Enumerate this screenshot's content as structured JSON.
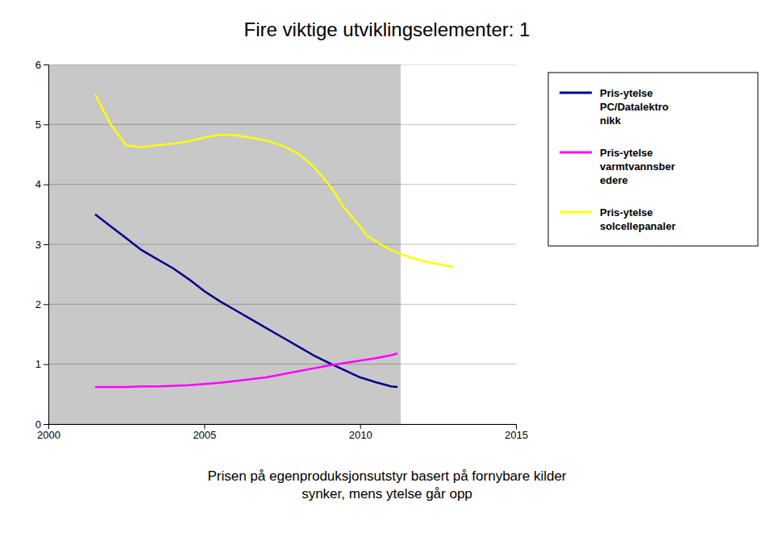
{
  "chart_data": {
    "type": "line",
    "title": "Fire viktige utviklingselementer: 1",
    "subtitle": "Prisen på egenproduksjonsutstyr basert på fornybare kilder\nsynker, mens ytelse går opp",
    "xlim": [
      2000,
      2015
    ],
    "xticks": [
      2000,
      2005,
      2010,
      2015
    ],
    "ylim": [
      0,
      6
    ],
    "yticks": [
      0,
      1,
      2,
      3,
      4,
      5,
      6
    ],
    "grid": true,
    "shaded_region": {
      "x": [
        2000,
        2011.3
      ],
      "color": "#C8C8C8"
    },
    "series": [
      {
        "name": "Pris-ytelse\nPC/Datalektro\nnikk",
        "color": "#00008B",
        "x": [
          2001.5,
          2002,
          2002.5,
          2003,
          2003.5,
          2004,
          2004.5,
          2005,
          2005.5,
          2006,
          2006.5,
          2007,
          2007.5,
          2008,
          2008.5,
          2009,
          2009.5,
          2010,
          2010.5,
          2011,
          2011.2
        ],
        "values": [
          3.5,
          3.3,
          3.1,
          2.9,
          2.75,
          2.6,
          2.42,
          2.22,
          2.05,
          1.9,
          1.75,
          1.6,
          1.45,
          1.3,
          1.15,
          1.02,
          0.9,
          0.78,
          0.7,
          0.63,
          0.62
        ]
      },
      {
        "name": "Pris-ytelse\nvarmtvannsber\nedere",
        "color": "#FF00FF",
        "x": [
          2001.5,
          2002,
          2002.5,
          2003,
          2003.5,
          2004,
          2004.5,
          2005,
          2005.5,
          2006,
          2006.5,
          2007,
          2007.5,
          2008,
          2008.5,
          2009,
          2009.5,
          2010,
          2010.5,
          2011,
          2011.2
        ],
        "values": [
          0.62,
          0.62,
          0.62,
          0.63,
          0.63,
          0.64,
          0.65,
          0.67,
          0.69,
          0.72,
          0.75,
          0.78,
          0.83,
          0.88,
          0.93,
          0.98,
          1.02,
          1.06,
          1.1,
          1.15,
          1.18
        ]
      },
      {
        "name": "Pris-ytelse\nsolcellepanaler",
        "color": "#FFFF00",
        "x": [
          2001.5,
          2002,
          2002.5,
          2003,
          2003.5,
          2004,
          2004.5,
          2005,
          2005.5,
          2006,
          2006.5,
          2007,
          2007.5,
          2008,
          2008.5,
          2009,
          2009.2,
          2009.5,
          2010,
          2010.2,
          2010.5,
          2011,
          2011.5,
          2012,
          2012.5,
          2013
        ],
        "values": [
          5.5,
          5.0,
          4.65,
          4.62,
          4.65,
          4.68,
          4.72,
          4.78,
          4.83,
          4.82,
          4.78,
          4.73,
          4.65,
          4.52,
          4.3,
          4.0,
          3.85,
          3.6,
          3.3,
          3.15,
          3.05,
          2.9,
          2.8,
          2.72,
          2.67,
          2.62
        ]
      }
    ]
  }
}
